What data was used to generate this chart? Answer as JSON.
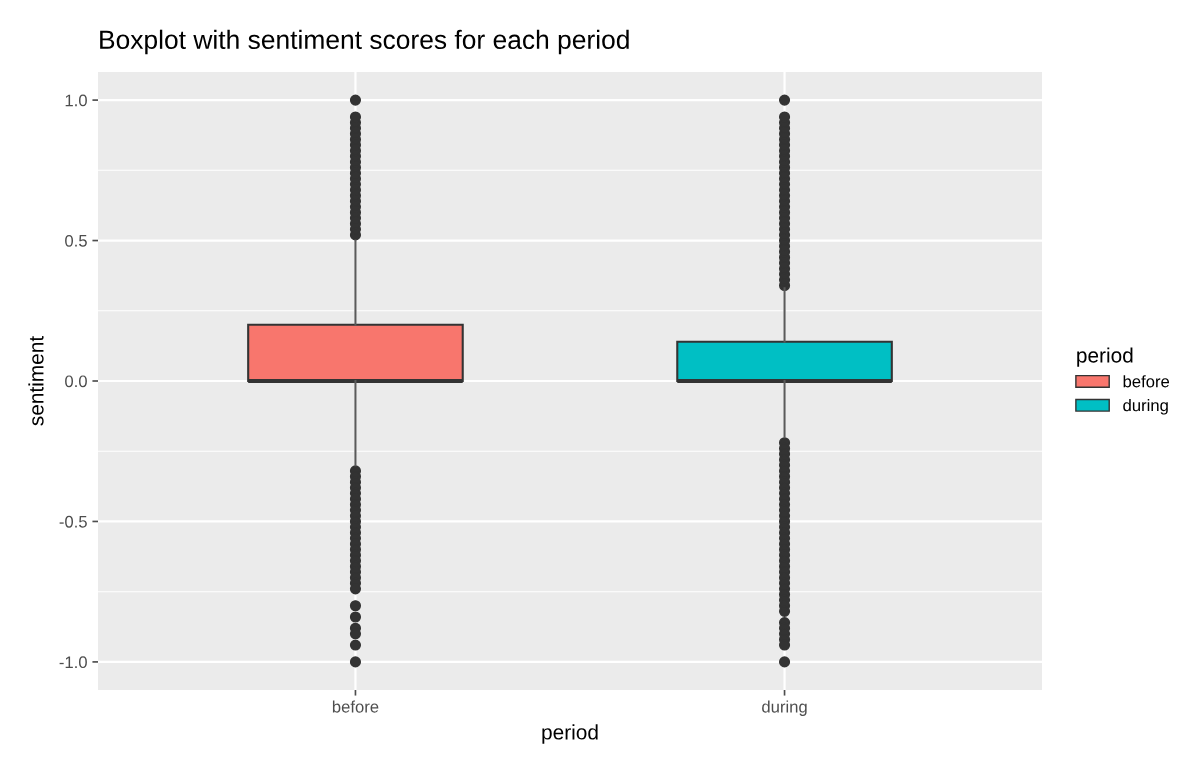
{
  "chart_data": {
    "type": "box",
    "title": "Boxplot with sentiment scores for each period",
    "xlabel": "period",
    "ylabel": "sentiment",
    "legend_title": "period",
    "categories": [
      "before",
      "during"
    ],
    "series": [
      {
        "name": "before",
        "color": "#f8766d",
        "boxes": [
          {
            "low": -0.3,
            "q1": 0,
            "median": 0,
            "q3": 0.2,
            "high": 0.5,
            "outliers": [
              0.52,
              0.54,
              0.56,
              0.58,
              0.6,
              0.62,
              0.64,
              0.66,
              0.68,
              0.7,
              0.72,
              0.74,
              0.76,
              0.78,
              0.8,
              0.82,
              0.84,
              0.86,
              0.88,
              0.9,
              0.92,
              0.94,
              1.0,
              -0.32,
              -0.34,
              -0.36,
              -0.38,
              -0.4,
              -0.42,
              -0.44,
              -0.46,
              -0.48,
              -0.5,
              -0.52,
              -0.54,
              -0.56,
              -0.58,
              -0.6,
              -0.62,
              -0.64,
              -0.66,
              -0.68,
              -0.7,
              -0.72,
              -0.74,
              -0.8,
              -0.84,
              -0.88,
              -0.9,
              -0.94,
              -1.0
            ]
          },
          null
        ]
      },
      {
        "name": "during",
        "color": "#00bfc4",
        "boxes": [
          null,
          {
            "low": -0.2,
            "q1": 0,
            "median": 0,
            "q3": 0.14,
            "high": 0.33,
            "outliers": [
              0.34,
              0.36,
              0.38,
              0.4,
              0.42,
              0.44,
              0.46,
              0.48,
              0.5,
              0.52,
              0.54,
              0.56,
              0.58,
              0.6,
              0.62,
              0.64,
              0.66,
              0.68,
              0.7,
              0.72,
              0.74,
              0.76,
              0.78,
              0.8,
              0.82,
              0.84,
              0.86,
              0.88,
              0.9,
              0.92,
              0.94,
              1.0,
              -0.22,
              -0.24,
              -0.26,
              -0.28,
              -0.3,
              -0.32,
              -0.34,
              -0.36,
              -0.38,
              -0.4,
              -0.42,
              -0.44,
              -0.46,
              -0.48,
              -0.5,
              -0.52,
              -0.54,
              -0.56,
              -0.58,
              -0.6,
              -0.62,
              -0.64,
              -0.66,
              -0.68,
              -0.7,
              -0.72,
              -0.74,
              -0.76,
              -0.78,
              -0.8,
              -0.82,
              -0.86,
              -0.88,
              -0.9,
              -0.92,
              -0.94,
              -1.0
            ]
          }
        ]
      }
    ],
    "ylim": [
      -1.1,
      1.1
    ],
    "yticks": [
      {
        "value": -1.0,
        "label": "-1.0"
      },
      {
        "value": -0.5,
        "label": "-0.5"
      },
      {
        "value": 0.0,
        "label": "0.0"
      },
      {
        "value": 0.5,
        "label": "0.5"
      },
      {
        "value": 1.0,
        "label": "1.0"
      }
    ],
    "grid": true,
    "legend": "right"
  }
}
